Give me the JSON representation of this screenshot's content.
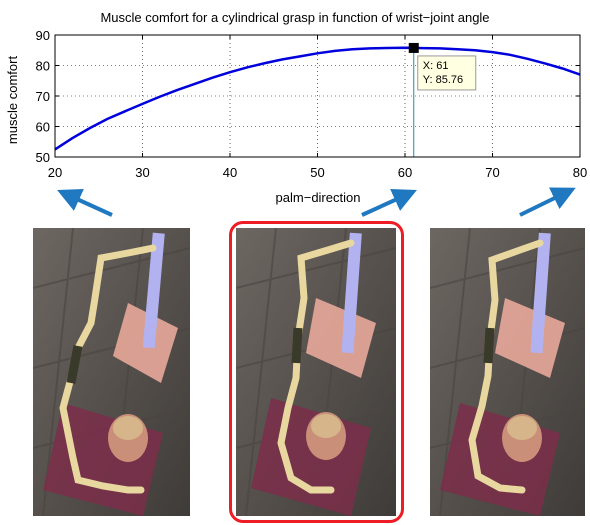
{
  "chart_data": {
    "type": "line",
    "title": "Muscle comfort for a cylindrical grasp in function of wrist−joint angle",
    "xlabel": "palm−direction",
    "ylabel": "muscle comfort",
    "xlim": [
      20,
      80
    ],
    "ylim": [
      50,
      90
    ],
    "xticks": [
      20,
      30,
      40,
      50,
      60,
      70,
      80
    ],
    "yticks": [
      50,
      60,
      70,
      80,
      90
    ],
    "grid": true,
    "series": [
      {
        "color": "#0000dd",
        "x": [
          20,
          22,
          24,
          26,
          28,
          30,
          32,
          34,
          36,
          38,
          40,
          42,
          44,
          46,
          48,
          50,
          52,
          54,
          56,
          58,
          60,
          61,
          62,
          64,
          66,
          68,
          70,
          72,
          74,
          76,
          78,
          80
        ],
        "y": [
          52.5,
          56.2,
          59.5,
          62.5,
          65.0,
          67.4,
          69.8,
          72.0,
          74.0,
          76.0,
          77.8,
          79.4,
          80.8,
          82.0,
          83.0,
          84.0,
          84.8,
          85.3,
          85.6,
          85.75,
          85.8,
          85.76,
          85.7,
          85.6,
          85.3,
          85.0,
          84.4,
          83.5,
          82.2,
          80.7,
          79.0,
          77.0
        ]
      }
    ],
    "datatip": {
      "x": 61,
      "y": 85.76,
      "label_x": "X: 61",
      "label_y": "Y: 85.76"
    },
    "arrow_color": "#1f78c0",
    "highlight_color": "#ee1c25"
  },
  "images": [
    {
      "name": "grasp-render-palm-20",
      "selected": false
    },
    {
      "name": "grasp-render-palm-61",
      "selected": true
    },
    {
      "name": "grasp-render-palm-80",
      "selected": false
    }
  ]
}
